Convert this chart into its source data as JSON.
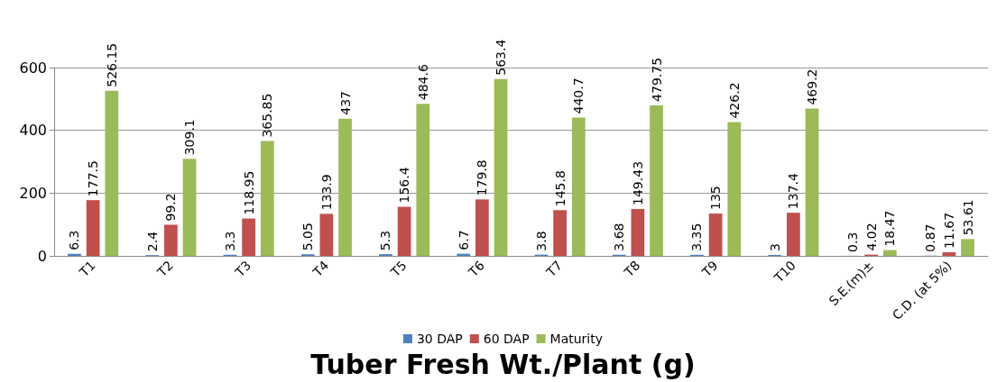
{
  "chart_data": {
    "type": "bar",
    "title": "Tuber Fresh Wt./Plant (g)",
    "categories": [
      "T1",
      "T2",
      "T3",
      "T4",
      "T5",
      "T6",
      "T7",
      "T8",
      "T9",
      "T10",
      "S.E.(m)±",
      "C.D. (at 5%)"
    ],
    "series": [
      {
        "name": "30 DAP",
        "color": "#4f81bd",
        "values": [
          6.3,
          2.4,
          3.3,
          5.05,
          5.3,
          6.7,
          3.8,
          3.68,
          3.35,
          3,
          0.3,
          0.87
        ]
      },
      {
        "name": "60 DAP",
        "color": "#c0504d",
        "values": [
          177.5,
          99.2,
          118.95,
          133.9,
          156.4,
          179.8,
          145.8,
          149.43,
          135,
          137.4,
          4.02,
          11.67
        ]
      },
      {
        "name": "Maturity",
        "color": "#9bbb59",
        "values": [
          526.15,
          309.1,
          365.85,
          437,
          484.6,
          563.4,
          440.7,
          479.75,
          426.2,
          469.2,
          18.47,
          53.61
        ]
      }
    ],
    "ylim": [
      0,
      600
    ],
    "yticks": [
      0,
      200,
      400,
      600
    ],
    "grid": "y",
    "legend": "bottom",
    "data_labels": true
  }
}
